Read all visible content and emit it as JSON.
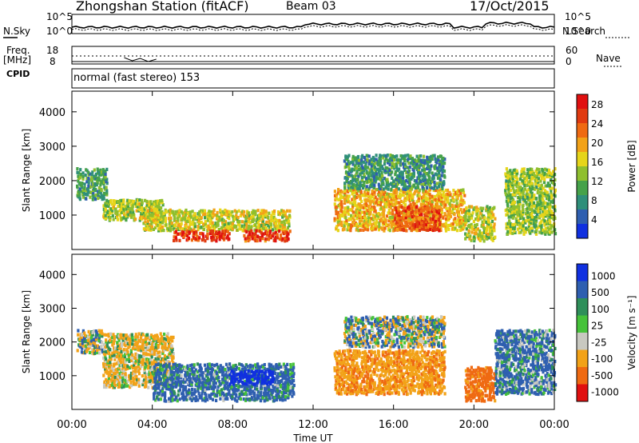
{
  "header": {
    "station": "Zhongshan Station (fitACF)",
    "beam": "Beam 03",
    "date": "17/Oct/2015"
  },
  "top_panels": {
    "nsky_label": "N.Sky",
    "nsky_ticks": [
      "10^5",
      "10^0"
    ],
    "nsearch_label": "N.Search",
    "nsearch_ticks": [
      "10^5",
      "10^0"
    ],
    "freq_label": "Freq.",
    "freq_unit": "[MHz]",
    "freq_ticks": [
      "18",
      "8"
    ],
    "nave_label": "Nave",
    "nave_ticks": [
      "60",
      "0"
    ],
    "cpid_label": "CPID",
    "cpid_text": "normal (fast stereo) 153"
  },
  "colors": {
    "power_scale": [
      "#1030e0",
      "#2f5fb0",
      "#2f8f7a",
      "#46a24a",
      "#8fbf2f",
      "#e6d51a",
      "#f2a218",
      "#ef6a12",
      "#e03a10",
      "#e01010"
    ],
    "velocity_scale": [
      "#e01010",
      "#ef6a12",
      "#f2a218",
      "#c8c8c0",
      "#46c23a",
      "#2f8f5a",
      "#2f5fb0",
      "#1030e0"
    ]
  },
  "chart_data": [
    {
      "type": "heatmap",
      "name": "power",
      "ylabel": "Slant Range [km]",
      "xlabel": "Time UT",
      "x_ticks": [
        "00:00",
        "04:00",
        "08:00",
        "12:00",
        "16:00",
        "20:00",
        "00:00"
      ],
      "y_ticks": [
        "1000",
        "2000",
        "3000",
        "4000"
      ],
      "ylim": [
        0,
        4600
      ],
      "colorbar_label": "Power [dB]",
      "colorbar_ticks": [
        "4",
        "8",
        "12",
        "16",
        "20",
        "24",
        "28"
      ],
      "colorbar_range": [
        0,
        30
      ],
      "blobs": [
        {
          "t0": 0.2,
          "t1": 1.7,
          "r0": 1400,
          "r1": 2300,
          "v": 9
        },
        {
          "t0": 1.5,
          "t1": 4.5,
          "r0": 800,
          "r1": 1400,
          "v": 14
        },
        {
          "t0": 3.5,
          "t1": 10.8,
          "r0": 500,
          "r1": 1100,
          "v": 16
        },
        {
          "t0": 5.0,
          "t1": 7.8,
          "r0": 200,
          "r1": 500,
          "v": 27
        },
        {
          "t0": 8.5,
          "t1": 10.8,
          "r0": 200,
          "r1": 500,
          "v": 26
        },
        {
          "t0": 13.0,
          "t1": 19.5,
          "r0": 500,
          "r1": 1700,
          "v": 19
        },
        {
          "t0": 16.0,
          "t1": 18.3,
          "r0": 500,
          "r1": 1200,
          "v": 25
        },
        {
          "t0": 13.5,
          "t1": 18.5,
          "r0": 1700,
          "r1": 2700,
          "v": 8
        },
        {
          "t0": 19.5,
          "t1": 21.0,
          "r0": 200,
          "r1": 1200,
          "v": 15
        },
        {
          "t0": 21.5,
          "t1": 24.0,
          "r0": 400,
          "r1": 2300,
          "v": 13
        }
      ]
    },
    {
      "type": "heatmap",
      "name": "velocity",
      "ylabel": "Slant Range [km]",
      "xlabel": "Time UT",
      "x_ticks": [
        "00:00",
        "04:00",
        "08:00",
        "12:00",
        "16:00",
        "20:00",
        "00:00"
      ],
      "y_ticks": [
        "1000",
        "2000",
        "3000",
        "4000"
      ],
      "ylim": [
        0,
        4600
      ],
      "colorbar_label": "Velocity [m s⁻¹]",
      "colorbar_ticks": [
        "1000",
        "500",
        "100",
        "25",
        "-25",
        "-100",
        "-500",
        "-1000"
      ],
      "blobs": [
        {
          "t0": 0.2,
          "t1": 1.5,
          "r0": 1600,
          "r1": 2300,
          "v": 0
        },
        {
          "t0": 1.5,
          "t1": 5.0,
          "r0": 600,
          "r1": 2200,
          "v": -150
        },
        {
          "t0": 4.0,
          "t1": 11.0,
          "r0": 200,
          "r1": 1300,
          "v": 200
        },
        {
          "t0": 7.8,
          "t1": 10.0,
          "r0": 700,
          "r1": 1100,
          "v": 900
        },
        {
          "t0": 13.0,
          "t1": 18.5,
          "r0": 400,
          "r1": 1700,
          "v": -400
        },
        {
          "t0": 13.5,
          "t1": 18.5,
          "r0": 1800,
          "r1": 2700,
          "v": 0
        },
        {
          "t0": 19.5,
          "t1": 21.0,
          "r0": 200,
          "r1": 1200,
          "v": -700
        },
        {
          "t0": 21.0,
          "t1": 24.0,
          "r0": 400,
          "r1": 2300,
          "v": 150
        }
      ]
    }
  ]
}
